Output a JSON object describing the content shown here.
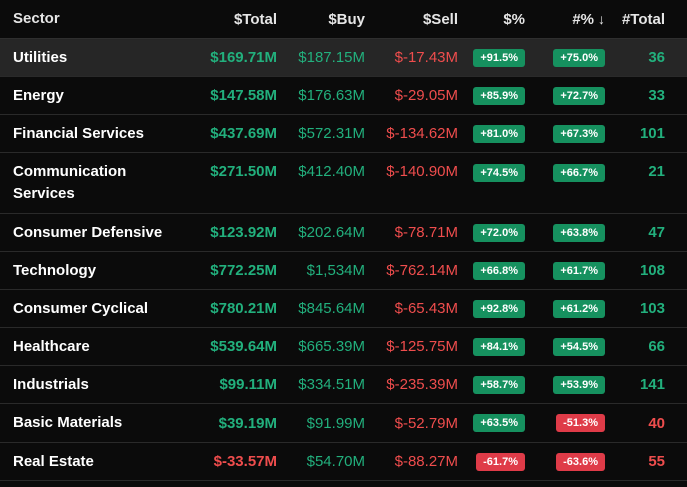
{
  "headers": {
    "sector": "Sector",
    "total": "$Total",
    "buy": "$Buy",
    "sell": "$Sell",
    "pct": "$%",
    "cpct": "#%",
    "count": "#Total"
  },
  "rows": [
    {
      "sector": "Utilities",
      "total": "$169.71M",
      "buy": "$187.15M",
      "sell": "$-17.43M",
      "pct": "+91.5%",
      "cpct": "+75.0%",
      "count": "36"
    },
    {
      "sector": "Energy",
      "total": "$147.58M",
      "buy": "$176.63M",
      "sell": "$-29.05M",
      "pct": "+85.9%",
      "cpct": "+72.7%",
      "count": "33"
    },
    {
      "sector": "Financial Services",
      "total": "$437.69M",
      "buy": "$572.31M",
      "sell": "$-134.62M",
      "pct": "+81.0%",
      "cpct": "+67.3%",
      "count": "101"
    },
    {
      "sector": "Communication Services",
      "total": "$271.50M",
      "buy": "$412.40M",
      "sell": "$-140.90M",
      "pct": "+74.5%",
      "cpct": "+66.7%",
      "count": "21"
    },
    {
      "sector": "Consumer Defensive",
      "total": "$123.92M",
      "buy": "$202.64M",
      "sell": "$-78.71M",
      "pct": "+72.0%",
      "cpct": "+63.8%",
      "count": "47"
    },
    {
      "sector": "Technology",
      "total": "$772.25M",
      "buy": "$1,534M",
      "sell": "$-762.14M",
      "pct": "+66.8%",
      "cpct": "+61.7%",
      "count": "108"
    },
    {
      "sector": "Consumer Cyclical",
      "total": "$780.21M",
      "buy": "$845.64M",
      "sell": "$-65.43M",
      "pct": "+92.8%",
      "cpct": "+61.2%",
      "count": "103"
    },
    {
      "sector": "Healthcare",
      "total": "$539.64M",
      "buy": "$665.39M",
      "sell": "$-125.75M",
      "pct": "+84.1%",
      "cpct": "+54.5%",
      "count": "66"
    },
    {
      "sector": "Industrials",
      "total": "$99.11M",
      "buy": "$334.51M",
      "sell": "$-235.39M",
      "pct": "+58.7%",
      "cpct": "+53.9%",
      "count": "141"
    },
    {
      "sector": "Basic Materials",
      "total": "$39.19M",
      "buy": "$91.99M",
      "sell": "$-52.79M",
      "pct": "+63.5%",
      "cpct": "-51.3%",
      "count": "40"
    },
    {
      "sector": "Real Estate",
      "total": "$-33.57M",
      "buy": "$54.70M",
      "sell": "$-88.27M",
      "pct": "-61.7%",
      "cpct": "-63.6%",
      "count": "55"
    }
  ]
}
